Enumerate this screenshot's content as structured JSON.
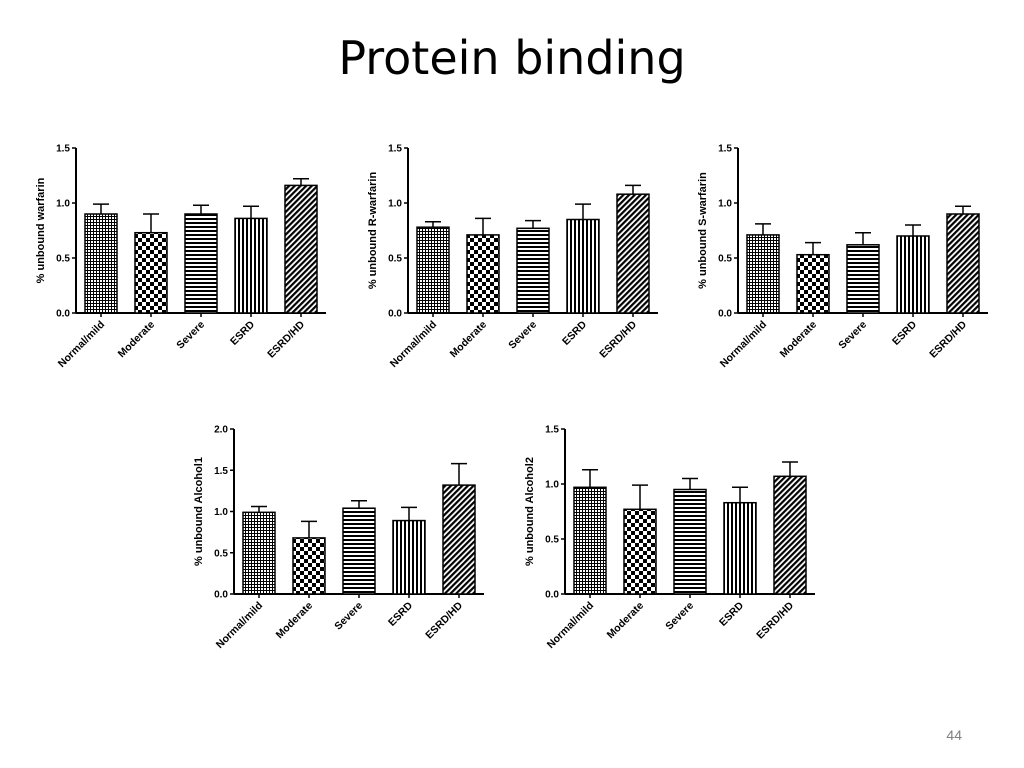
{
  "slide": {
    "title": "Protein binding",
    "page_number": "44"
  },
  "chart_data": [
    {
      "type": "bar",
      "ylabel": "% unbound warfarin",
      "ylim": [
        0,
        1.5
      ],
      "yticks": [
        "0.0",
        "0.5",
        "1.0",
        "1.5"
      ],
      "categories": [
        "Normal/mild",
        "Moderate",
        "Severe",
        "ESRD",
        "ESRD/HD"
      ],
      "values": [
        0.9,
        0.73,
        0.9,
        0.86,
        1.16
      ],
      "error_upper": [
        0.99,
        0.9,
        0.98,
        0.97,
        1.22
      ]
    },
    {
      "type": "bar",
      "ylabel": "% unbound R-warfarin",
      "ylim": [
        0,
        1.5
      ],
      "yticks": [
        "0.0",
        "0.5",
        "1.0",
        "1.5"
      ],
      "categories": [
        "Normal/mild",
        "Moderate",
        "Severe",
        "ESRD",
        "ESRD/HD"
      ],
      "values": [
        0.78,
        0.71,
        0.77,
        0.85,
        1.08
      ],
      "error_upper": [
        0.83,
        0.86,
        0.84,
        0.99,
        1.16
      ]
    },
    {
      "type": "bar",
      "ylabel": "% unbound S-warfarin",
      "ylim": [
        0,
        1.5
      ],
      "yticks": [
        "0.0",
        "0.5",
        "1.0",
        "1.5"
      ],
      "categories": [
        "Normal/mild",
        "Moderate",
        "Severe",
        "ESRD",
        "ESRD/HD"
      ],
      "values": [
        0.71,
        0.53,
        0.62,
        0.7,
        0.9
      ],
      "error_upper": [
        0.81,
        0.64,
        0.73,
        0.8,
        0.97
      ]
    },
    {
      "type": "bar",
      "ylabel": "% unbound Alcohol1",
      "ylim": [
        0,
        2.0
      ],
      "yticks": [
        "0.0",
        "0.5",
        "1.0",
        "1.5",
        "2.0"
      ],
      "categories": [
        "Normal/mild",
        "Moderate",
        "Severe",
        "ESRD",
        "ESRD/HD"
      ],
      "values": [
        0.99,
        0.68,
        1.04,
        0.89,
        1.32
      ],
      "error_upper": [
        1.06,
        0.88,
        1.13,
        1.05,
        1.58
      ]
    },
    {
      "type": "bar",
      "ylabel": "% unbound Alcohol2",
      "ylim": [
        0,
        1.5
      ],
      "yticks": [
        "0.0",
        "0.5",
        "1.0",
        "1.5"
      ],
      "categories": [
        "Normal/mild",
        "Moderate",
        "Severe",
        "ESRD",
        "ESRD/HD"
      ],
      "values": [
        0.97,
        0.77,
        0.95,
        0.83,
        1.07
      ],
      "error_upper": [
        1.13,
        0.99,
        1.05,
        0.97,
        1.2
      ]
    }
  ]
}
